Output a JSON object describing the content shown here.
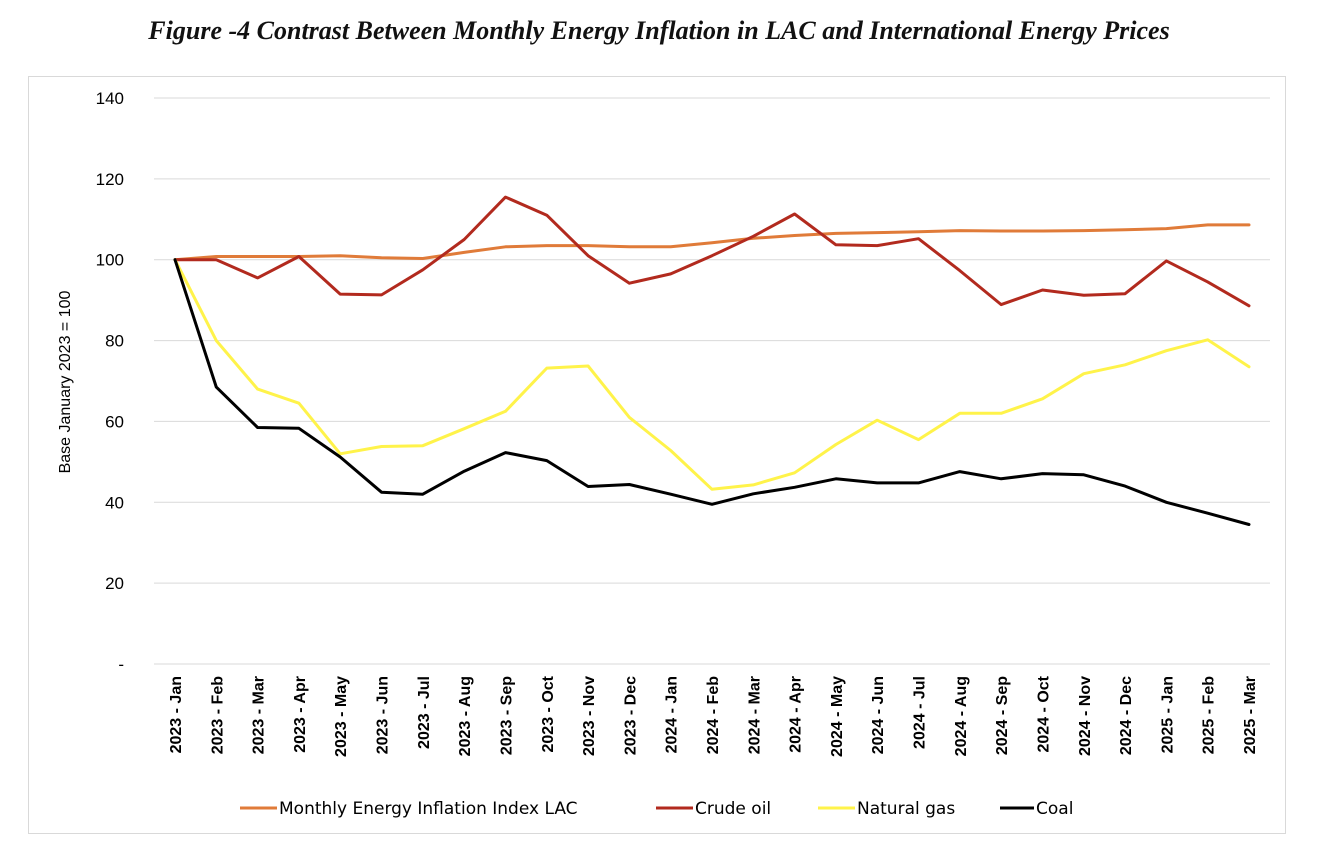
{
  "figure_title": "Figure -4 Contrast Between Monthly Energy Inflation in LAC and International Energy Prices",
  "chart_data": {
    "type": "line",
    "title": "Figure -4 Contrast Between Monthly Energy Inflation in LAC and International Energy Prices",
    "xlabel": "",
    "ylabel": "Base January 2023 = 100",
    "ylim": [
      0,
      140
    ],
    "yticks": [
      0,
      20,
      40,
      60,
      80,
      100,
      120,
      140
    ],
    "ytick_labels": [
      "-",
      "20",
      "40",
      "60",
      "80",
      "100",
      "120",
      "140"
    ],
    "grid": "horizontal",
    "legend": "bottom",
    "categories": [
      "2023 - Jan",
      "2023 - Feb",
      "2023 - Mar",
      "2023 - Apr",
      "2023 - May",
      "2023 - Jun",
      "2023 - Jul",
      "2023 - Aug",
      "2023 - Sep",
      "2023 - Oct",
      "2023 - Nov",
      "2023 - Dec",
      "2024 - Jan",
      "2024 - Feb",
      "2024 - Mar",
      "2024 - Apr",
      "2024 - May",
      "2024 - Jun",
      "2024 - Jul",
      "2024 - Aug",
      "2024 - Sep",
      "2024 - Oct",
      "2024 - Nov",
      "2024 - Dec",
      "2025 - Jan",
      "2025 - Feb",
      "2025 - Mar"
    ],
    "series": [
      {
        "name": "Monthly Energy Inflation Index LAC",
        "color": "#E07B39",
        "values": [
          100,
          100.8,
          100.8,
          100.8,
          101.0,
          100.5,
          100.3,
          101.8,
          103.2,
          103.5,
          103.5,
          103.2,
          103.2,
          104.2,
          105.3,
          106.0,
          106.5,
          106.7,
          106.9,
          107.2,
          107.1,
          107.1,
          107.2,
          107.4,
          107.7,
          108.6,
          108.6
        ]
      },
      {
        "name": "Crude oil",
        "color": "#B22A1E",
        "values": [
          100,
          100.0,
          95.5,
          100.8,
          91.5,
          91.3,
          97.5,
          105.0,
          115.5,
          111.0,
          101.0,
          94.2,
          96.5,
          101.0,
          105.8,
          111.3,
          103.7,
          103.5,
          105.2,
          97.3,
          88.9,
          92.5,
          91.2,
          91.6,
          99.7,
          94.5,
          88.6
        ]
      },
      {
        "name": "Natural gas",
        "color": "#FFF34A",
        "values": [
          100,
          80.0,
          68.0,
          64.5,
          52.0,
          53.8,
          54.0,
          58.2,
          62.5,
          73.2,
          73.7,
          61.0,
          52.8,
          43.2,
          44.3,
          47.3,
          54.3,
          60.3,
          55.5,
          62.0,
          62.0,
          65.6,
          71.8,
          74.0,
          77.5,
          80.2,
          73.5
        ]
      },
      {
        "name": "Coal",
        "color": "#000000",
        "values": [
          100,
          68.5,
          58.5,
          58.3,
          51.2,
          42.5,
          42.0,
          47.7,
          52.3,
          50.3,
          43.9,
          44.4,
          42.0,
          39.5,
          42.1,
          43.7,
          45.8,
          44.8,
          44.8,
          47.6,
          45.8,
          47.1,
          46.8,
          44.0,
          40.0,
          37.3,
          34.5
        ]
      }
    ]
  }
}
